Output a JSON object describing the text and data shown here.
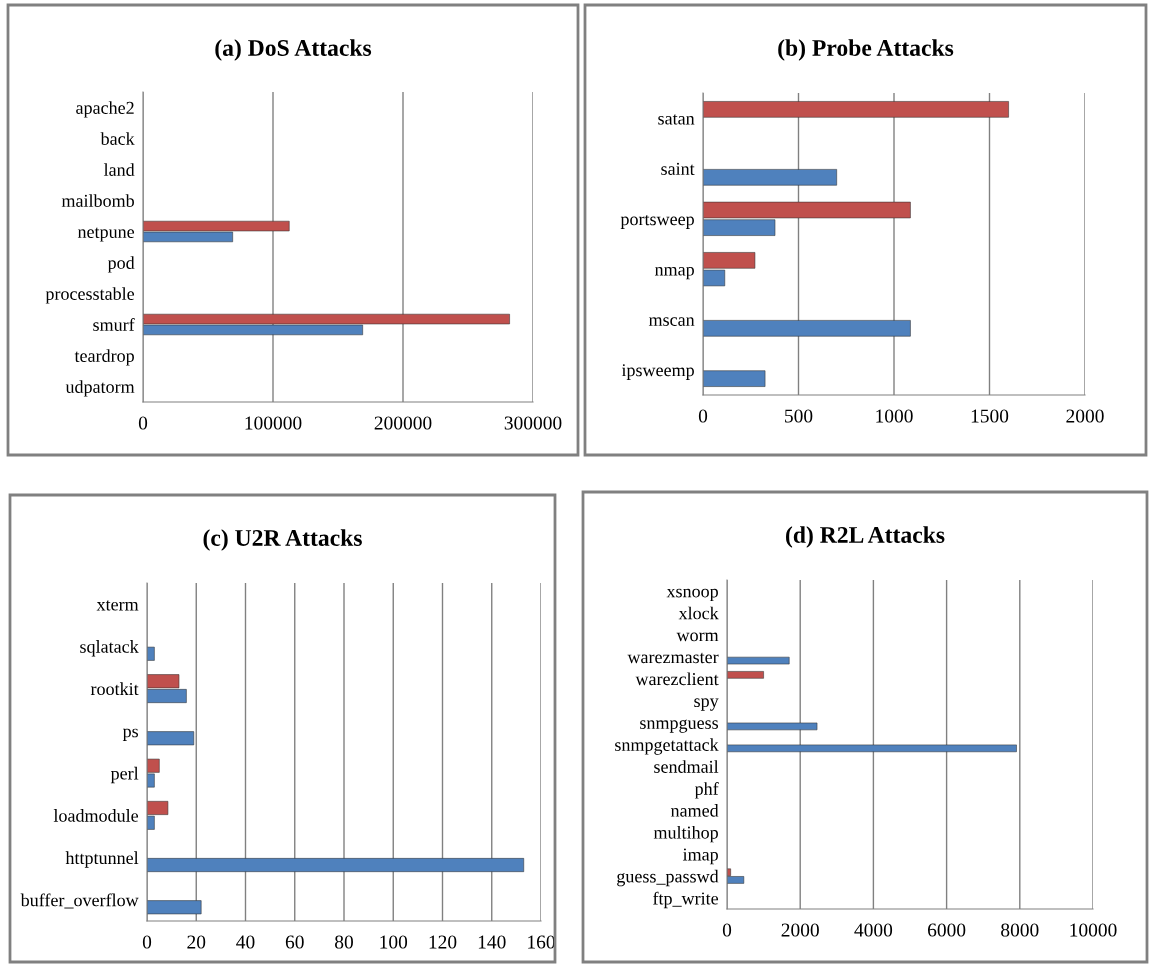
{
  "chart_data": [
    {
      "type": "bar",
      "orientation": "horizontal",
      "title": "(a) DoS Attacks",
      "categories": [
        "apache2",
        "back",
        "land",
        "mailbomb",
        "netpune",
        "pod",
        "processtable",
        "smurf",
        "teardrop",
        "udpatorm"
      ],
      "series": [
        {
          "color": "#4f81bd",
          "values": [
            null,
            null,
            null,
            null,
            69000,
            null,
            null,
            169000,
            null,
            null
          ]
        },
        {
          "color": "#c0504d",
          "values": [
            null,
            null,
            null,
            null,
            112500,
            null,
            null,
            282000,
            null,
            null
          ]
        }
      ],
      "xlim": [
        0,
        300000
      ],
      "xticks": [
        0,
        100000,
        200000,
        300000
      ],
      "grid": "x"
    },
    {
      "type": "bar",
      "orientation": "horizontal",
      "title": "(b) Probe Attacks",
      "categories": [
        "satan",
        "saint",
        "portsweep",
        "nmap",
        "mscan",
        "ipsweemp"
      ],
      "series": [
        {
          "color": "#4f81bd",
          "values": [
            null,
            700,
            377,
            114,
            1086,
            325
          ]
        },
        {
          "color": "#c0504d",
          "values": [
            1600,
            null,
            1086,
            272,
            null,
            null
          ]
        }
      ],
      "xlim": [
        0,
        2000
      ],
      "xticks": [
        0,
        500,
        1000,
        1500,
        2000
      ],
      "grid": "x"
    },
    {
      "type": "bar",
      "orientation": "horizontal",
      "title": "(c) U2R Attacks",
      "categories": [
        "xterm",
        "sqlatack",
        "rootkit",
        "ps",
        "perl",
        "loadmodule",
        "httptunnel",
        "buffer_overflow"
      ],
      "series": [
        {
          "color": "#4f81bd",
          "values": [
            null,
            3,
            16,
            19,
            3,
            3,
            153,
            22
          ]
        },
        {
          "color": "#c0504d",
          "values": [
            null,
            null,
            13,
            null,
            5,
            8.5,
            null,
            null
          ]
        }
      ],
      "xlim": [
        0,
        160
      ],
      "xticks": [
        0,
        20,
        40,
        60,
        80,
        100,
        120,
        140,
        160
      ],
      "grid": "x"
    },
    {
      "type": "bar",
      "orientation": "horizontal",
      "title": "(d) R2L Attacks",
      "categories": [
        "xsnoop",
        "xlock",
        "worm",
        "warezmaster",
        "warezclient",
        "spy",
        "snmpguess",
        "snmpgetattack",
        "sendmail",
        "phf",
        "named",
        "multihop",
        "imap",
        "guess_passwd",
        "ftp_write"
      ],
      "series": [
        {
          "color": "#4f81bd",
          "values": [
            null,
            null,
            null,
            1700,
            null,
            null,
            2460,
            7910,
            null,
            null,
            null,
            null,
            null,
            460,
            null
          ]
        },
        {
          "color": "#c0504d",
          "values": [
            null,
            null,
            null,
            null,
            1000,
            null,
            null,
            null,
            null,
            null,
            null,
            null,
            null,
            100,
            null
          ]
        }
      ],
      "xlim": [
        0,
        10000
      ],
      "xticks": [
        0,
        2000,
        4000,
        6000,
        8000,
        10000
      ],
      "grid": "x"
    }
  ]
}
